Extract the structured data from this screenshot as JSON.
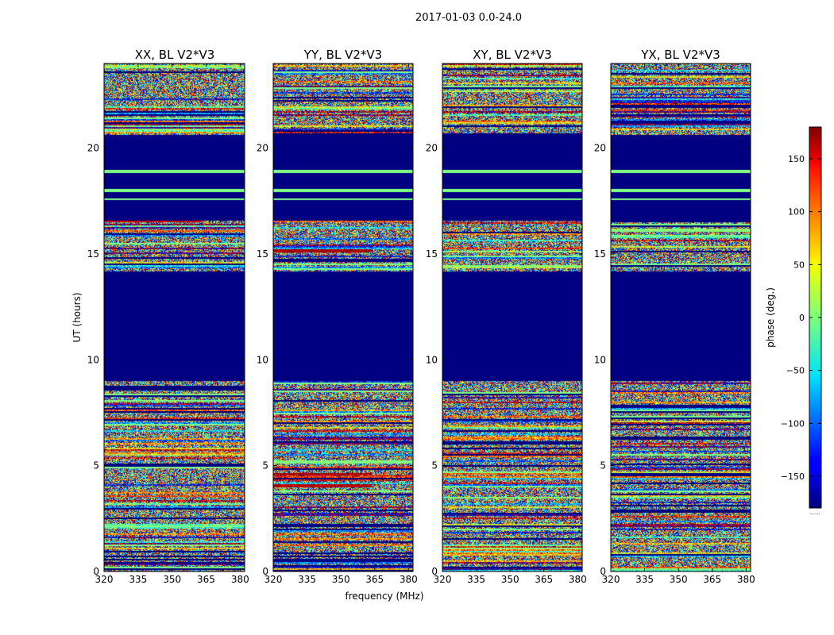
{
  "figure": {
    "suptitle": "2017-01-03 0.0-24.0",
    "colorbar_footer": "......"
  },
  "chart_data": {
    "type": "heatmap",
    "suptitle": "2017-01-03 0.0-24.0",
    "xlabel": "frequency (MHz)",
    "ylabel": "UT (hours)",
    "xlim": [
      320,
      382
    ],
    "ylim": [
      0,
      24
    ],
    "x_ticks": [
      320,
      335,
      350,
      365,
      380
    ],
    "y_ticks": [
      0,
      5,
      10,
      15,
      20
    ],
    "colorbar": {
      "label": "phase (deg.)",
      "colormap": "jet",
      "range": [
        -180,
        180
      ],
      "ticks": [
        150,
        100,
        50,
        0,
        -50,
        -100,
        -150
      ],
      "tick_labels": [
        "150",
        "100",
        "50",
        "0",
        "−50",
        "−100",
        "−150"
      ]
    },
    "masked_value": -180,
    "masked_ranges_hours": [
      [
        9.0,
        14.2
      ],
      [
        16.6,
        20.6
      ]
    ],
    "flag_lines_hours": [
      17.6,
      18.0,
      18.9
    ],
    "panels": [
      {
        "title": "XX, BL V2*V3",
        "feature_bands": [
          [
            16.5,
            16.75,
            155
          ]
        ]
      },
      {
        "title": "YY, BL V2*V3",
        "feature_bands": [
          [
            3.95,
            4.15,
            160
          ],
          [
            4.55,
            4.65,
            170
          ],
          [
            15.1,
            15.25,
            165
          ]
        ]
      },
      {
        "title": "XY, BL V2*V3",
        "feature_bands": []
      },
      {
        "title": "YX, BL V2*V3",
        "feature_bands": []
      }
    ]
  }
}
